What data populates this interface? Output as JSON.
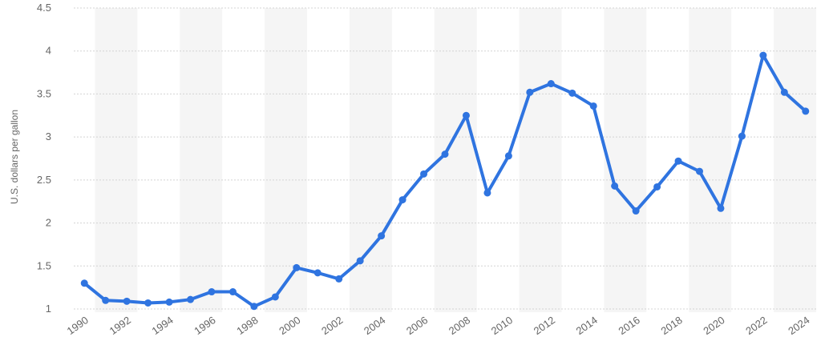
{
  "chart_data": {
    "type": "line",
    "title": "",
    "xlabel": "",
    "ylabel": "U.S. dollars per gallon",
    "x": [
      1990,
      1991,
      1992,
      1993,
      1994,
      1995,
      1996,
      1997,
      1998,
      1999,
      2000,
      2001,
      2002,
      2003,
      2004,
      2005,
      2006,
      2007,
      2008,
      2009,
      2010,
      2011,
      2012,
      2013,
      2014,
      2015,
      2016,
      2017,
      2018,
      2019,
      2020,
      2021,
      2022,
      2023,
      2024
    ],
    "x_tick_labels": [
      "1990",
      "1992",
      "1994",
      "1996",
      "1998",
      "2000",
      "2002",
      "2004",
      "2006",
      "2008",
      "2010",
      "2012",
      "2014",
      "2016",
      "2018",
      "2020",
      "2022",
      "2024"
    ],
    "series": [
      {
        "values": [
          1.3,
          1.1,
          1.09,
          1.07,
          1.08,
          1.11,
          1.2,
          1.2,
          1.03,
          1.14,
          1.48,
          1.42,
          1.35,
          1.56,
          1.85,
          2.27,
          2.57,
          2.8,
          3.25,
          2.35,
          2.78,
          3.52,
          3.62,
          3.51,
          3.36,
          2.43,
          2.14,
          2.42,
          2.72,
          2.6,
          2.17,
          3.01,
          3.95,
          3.52,
          3.3
        ],
        "color": "#2f74e0"
      }
    ],
    "y_ticks": [
      "1",
      "1.5",
      "2",
      "2.5",
      "3",
      "3.5",
      "4",
      "4.5"
    ],
    "ylim": [
      0.9,
      4.5
    ],
    "grid": true,
    "legend": "none"
  }
}
